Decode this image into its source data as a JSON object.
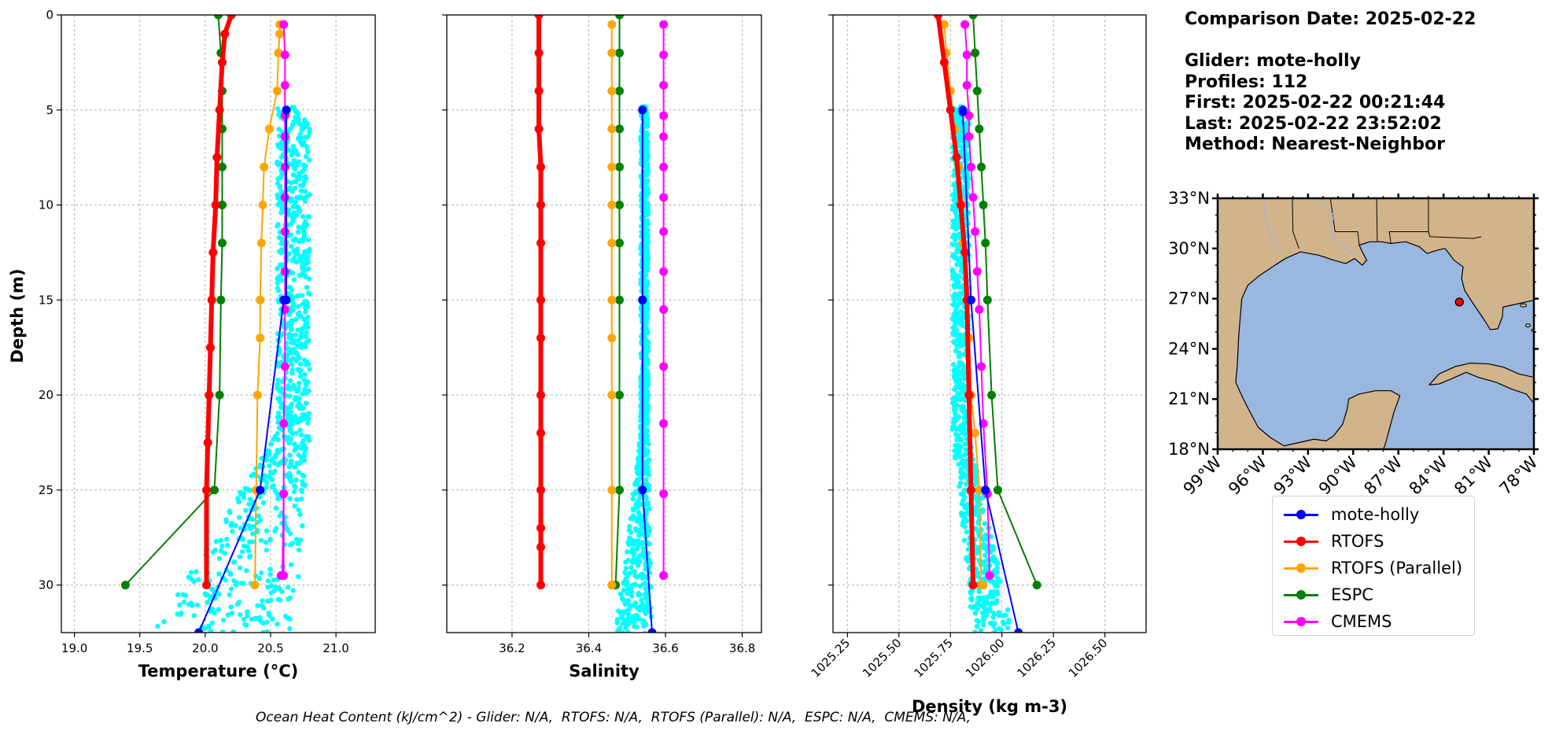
{
  "header": {
    "comparison_date": "Comparison Date: 2025-02-22",
    "glider": "Glider: mote-holly",
    "profiles": "Profiles: 112",
    "first": "First: 2025-02-22 00:21:44",
    "last": "Last: 2025-02-22 23:52:02",
    "method": "Method: Nearest-Neighbor"
  },
  "footer": "Ocean Heat Content (kJ/cm^2) - Glider: N/A,  RTOFS: N/A,  RTOFS (Parallel): N/A,  ESPC: N/A,  CMEMS: N/A,",
  "colors": {
    "glider": "#0000ff",
    "glider_scatter": "#00ffff",
    "rtofs": "#ff0000",
    "rtofs_parallel": "#ffa500",
    "espc": "#008000",
    "cmems": "#ff00ff",
    "ocean": "#9ab7e0",
    "land": "#d2b48c",
    "grid": "#b0b0b0"
  },
  "legend": [
    {
      "key": "glider",
      "label": "mote-holly"
    },
    {
      "key": "rtofs",
      "label": "RTOFS"
    },
    {
      "key": "rtofs_parallel",
      "label": "RTOFS (Parallel)"
    },
    {
      "key": "espc",
      "label": "ESPC"
    },
    {
      "key": "cmems",
      "label": "CMEMS"
    }
  ],
  "map": {
    "lon_ticks": [
      "99°W",
      "96°W",
      "93°W",
      "90°W",
      "87°W",
      "84°W",
      "81°W",
      "78°W"
    ],
    "lat_ticks": [
      "33°N",
      "30°N",
      "27°N",
      "24°N",
      "21°N",
      "18°N"
    ],
    "lon_range": [
      -99,
      -78
    ],
    "lat_range": [
      18,
      33
    ],
    "glider_position": {
      "lon": -82.95,
      "lat": 26.8
    }
  },
  "chart_data": [
    {
      "type": "line",
      "xlabel": "Temperature (°C)",
      "ylabel": "Depth (m)",
      "xlim": [
        18.9,
        21.3
      ],
      "ylim": [
        32.5,
        0
      ],
      "xticks": [
        "19.0",
        "19.5",
        "20.0",
        "20.5",
        "21.0"
      ],
      "xtick_values": [
        19.0,
        19.5,
        20.0,
        20.5,
        21.0
      ],
      "yticks": [
        "0",
        "5",
        "10",
        "15",
        "20",
        "25",
        "30"
      ],
      "ytick_values": [
        0,
        5,
        10,
        15,
        20,
        25,
        30
      ],
      "grid": true,
      "scatter_range": {
        "shallow": [
          20.55,
          20.8
        ],
        "deep": [
          19.6,
          20.6
        ]
      },
      "series": [
        {
          "name": "RTOFS",
          "key": "rtofs",
          "width": 6,
          "marker": false,
          "x": [
            20.2,
            20.15,
            20.13,
            20.11,
            20.09,
            20.08,
            20.06,
            20.05,
            20.04,
            20.03,
            20.02,
            20.01,
            20.01
          ],
          "y": [
            0,
            1,
            2.5,
            5,
            7.5,
            10,
            12.5,
            15,
            17.5,
            20,
            22.5,
            25,
            30
          ]
        },
        {
          "name": "RTOFS (Parallel)",
          "key": "rtofs_parallel",
          "width": 2,
          "marker": true,
          "x": [
            20.57,
            20.57,
            20.56,
            20.55,
            20.49,
            20.45,
            20.44,
            20.43,
            20.42,
            20.42,
            20.4,
            20.39,
            20.38
          ],
          "y": [
            0.5,
            1,
            2,
            4,
            6,
            8,
            10,
            12,
            15,
            17,
            20,
            25,
            30
          ]
        },
        {
          "name": "ESPC",
          "key": "espc",
          "width": 2,
          "marker": true,
          "x": [
            20.1,
            20.12,
            20.13,
            20.13,
            20.13,
            20.13,
            20.13,
            20.12,
            20.11,
            20.07,
            19.39
          ],
          "y": [
            0,
            2,
            4,
            6,
            8,
            10,
            12,
            15,
            20,
            25,
            30
          ]
        },
        {
          "name": "CMEMS",
          "key": "cmems",
          "width": 2,
          "marker": true,
          "x": [
            20.6,
            20.61,
            20.61,
            20.61,
            20.61,
            20.61,
            20.61,
            20.61,
            20.61,
            20.61,
            20.61,
            20.6,
            20.6,
            20.6,
            20.6,
            20.59,
            20.58
          ],
          "y": [
            0.5,
            2.1,
            3.7,
            5.3,
            6.4,
            8.0,
            9.6,
            11.4,
            13.5,
            15.5,
            18.5,
            21.5,
            25.2,
            29.5,
            25.2,
            29.5,
            29.5
          ]
        },
        {
          "name": "mote-holly",
          "key": "glider",
          "width": 2,
          "marker": true,
          "x": [
            20.62,
            20.62,
            20.6,
            20.42,
            19.95
          ],
          "y": [
            5,
            15,
            15,
            25,
            32.5
          ]
        }
      ]
    },
    {
      "type": "line",
      "xlabel": "Salinity",
      "xlim": [
        36.03,
        36.85
      ],
      "ylim": [
        32.5,
        0
      ],
      "xticks": [
        "36.2",
        "36.4",
        "36.6",
        "36.8"
      ],
      "xtick_values": [
        36.2,
        36.4,
        36.6,
        36.8
      ],
      "yticks": [
        "0",
        "5",
        "10",
        "15",
        "20",
        "25",
        "30"
      ],
      "ytick_values": [
        0,
        5,
        10,
        15,
        20,
        25,
        30
      ],
      "grid": true,
      "scatter_range": {
        "shallow": [
          36.535,
          36.555
        ],
        "deep": [
          36.47,
          36.57
        ]
      },
      "series": [
        {
          "name": "RTOFS",
          "key": "rtofs",
          "width": 6,
          "marker": true,
          "x": [
            36.27,
            36.27,
            36.27,
            36.27,
            36.275,
            36.275,
            36.275,
            36.275,
            36.275,
            36.275,
            36.275,
            36.275,
            36.275,
            36.275,
            36.275
          ],
          "y": [
            0,
            2,
            4,
            6,
            8,
            10,
            12,
            15,
            17,
            20,
            22,
            25,
            27,
            28,
            30
          ]
        },
        {
          "name": "RTOFS (Parallel)",
          "key": "rtofs_parallel",
          "width": 2,
          "marker": true,
          "x": [
            36.46,
            36.46,
            36.46,
            36.46,
            36.46,
            36.46,
            36.46,
            36.46,
            36.46,
            36.46,
            36.46,
            36.46,
            36.46
          ],
          "y": [
            0.5,
            2,
            4,
            6,
            8,
            10,
            12,
            15,
            17,
            20,
            25,
            30,
            30
          ]
        },
        {
          "name": "ESPC",
          "key": "espc",
          "width": 2,
          "marker": true,
          "x": [
            36.48,
            36.48,
            36.48,
            36.48,
            36.48,
            36.48,
            36.48,
            36.48,
            36.48,
            36.48,
            36.47
          ],
          "y": [
            0,
            2,
            4,
            6,
            8,
            10,
            12,
            15,
            20,
            25,
            30
          ]
        },
        {
          "name": "CMEMS",
          "key": "cmems",
          "width": 2,
          "marker": true,
          "x": [
            36.595,
            36.595,
            36.595,
            36.595,
            36.595,
            36.595,
            36.595,
            36.595,
            36.595,
            36.595,
            36.595,
            36.595,
            36.595,
            36.595,
            36.595
          ],
          "y": [
            0.5,
            2.1,
            3.7,
            5.3,
            6.4,
            8.0,
            9.6,
            11.4,
            13.5,
            15.5,
            18.5,
            21.5,
            25.2,
            29.5,
            29.5
          ]
        },
        {
          "name": "mote-holly",
          "key": "glider",
          "width": 2,
          "marker": true,
          "x": [
            36.54,
            36.54,
            36.54,
            36.565
          ],
          "y": [
            5,
            15,
            25,
            32.5
          ]
        }
      ]
    },
    {
      "type": "line",
      "xlabel": "Density (kg m-3)",
      "xlim": [
        1025.18,
        1026.7
      ],
      "ylim": [
        32.5,
        0
      ],
      "xticks": [
        "1025.25",
        "1025.50",
        "1025.75",
        "1026.00",
        "1026.25",
        "1026.50"
      ],
      "xtick_values": [
        1025.25,
        1025.5,
        1025.75,
        1026.0,
        1026.25,
        1026.5
      ],
      "yticks": [
        "0",
        "5",
        "10",
        "15",
        "20",
        "25",
        "30"
      ],
      "ytick_values": [
        0,
        5,
        10,
        15,
        20,
        25,
        30
      ],
      "grid": true,
      "scatter_range": {
        "shallow": [
          1025.76,
          1025.84
        ],
        "deep": [
          1025.86,
          1026.2
        ]
      },
      "series": [
        {
          "name": "RTOFS",
          "key": "rtofs",
          "width": 6,
          "marker": false,
          "x": [
            1025.69,
            1025.72,
            1025.75,
            1025.78,
            1025.8,
            1025.82,
            1025.83,
            1025.84,
            1025.85,
            1025.86
          ],
          "y": [
            0,
            2.5,
            5,
            7.5,
            10,
            12.5,
            15,
            20,
            25,
            30
          ]
        },
        {
          "name": "RTOFS (Parallel)",
          "key": "rtofs_parallel",
          "width": 2,
          "marker": true,
          "x": [
            1025.72,
            1025.73,
            1025.75,
            1025.77,
            1025.79,
            1025.81,
            1025.81,
            1025.83,
            1025.84,
            1025.85,
            1025.87,
            1025.89,
            1025.9,
            1025.91
          ],
          "y": [
            0.5,
            2,
            4,
            6,
            8,
            10,
            12,
            15,
            17,
            20,
            22,
            25,
            30,
            30
          ]
        },
        {
          "name": "ESPC",
          "key": "espc",
          "width": 2,
          "marker": true,
          "x": [
            1025.86,
            1025.87,
            1025.88,
            1025.89,
            1025.9,
            1025.91,
            1025.92,
            1025.93,
            1025.95,
            1025.98,
            1026.17
          ],
          "y": [
            0,
            2,
            4,
            6,
            8,
            10,
            12,
            15,
            20,
            25,
            30
          ]
        },
        {
          "name": "CMEMS",
          "key": "cmems",
          "width": 2,
          "marker": true,
          "x": [
            1025.82,
            1025.83,
            1025.83,
            1025.84,
            1025.84,
            1025.85,
            1025.86,
            1025.87,
            1025.88,
            1025.89,
            1025.9,
            1025.91,
            1025.93,
            1025.94
          ],
          "y": [
            0.5,
            2.1,
            3.7,
            5.3,
            6.4,
            8.0,
            9.6,
            11.4,
            13.5,
            15.5,
            18.5,
            21.5,
            25.2,
            29.5
          ]
        },
        {
          "name": "mote-holly",
          "key": "glider",
          "width": 2,
          "marker": true,
          "x": [
            1025.81,
            1025.81,
            1025.85,
            1025.92,
            1026.08
          ],
          "y": [
            5,
            5.1,
            15,
            25,
            32.5
          ]
        }
      ]
    }
  ]
}
